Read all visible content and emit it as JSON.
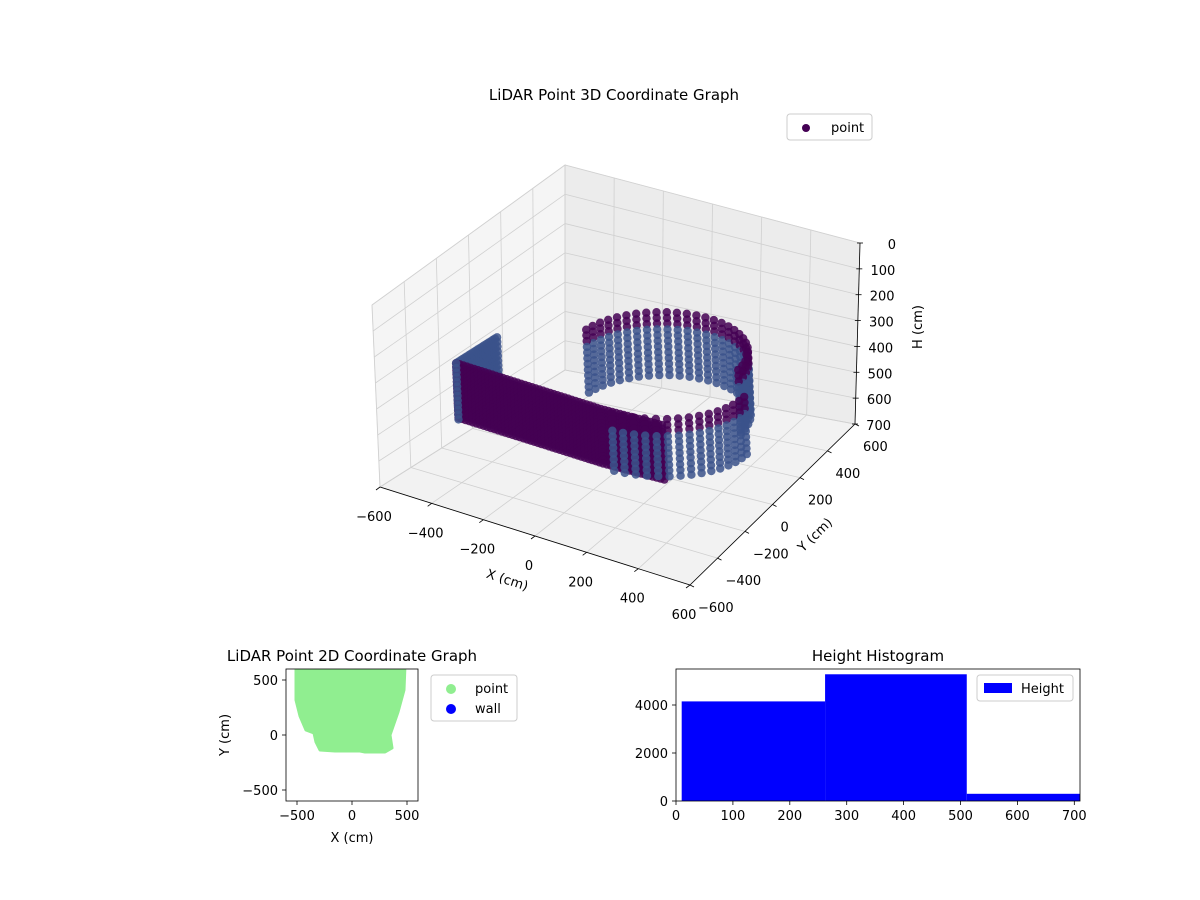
{
  "colors": {
    "point3d_dark": "#440154",
    "point3d_mid": "#3b528b",
    "point2d": "#90ee90",
    "wall": "#0000ff",
    "hist": "#0000ff",
    "pane": "#f2f2f2",
    "grid": "#d0d0d0"
  },
  "chart_data": [
    {
      "type": "scatter",
      "title": "LiDAR Point 3D Coordinate Graph",
      "xlabel": "X (cm)",
      "ylabel": "Y (cm)",
      "zlabel": "H (cm)",
      "xlim": [
        -600,
        600
      ],
      "ylim": [
        -600,
        600
      ],
      "zlim": [
        0,
        700
      ],
      "z_inverted": true,
      "xticks": [
        "−600",
        "−400",
        "−200",
        "0",
        "200",
        "400",
        "600"
      ],
      "yticks": [
        "−600",
        "−400",
        "−200",
        "0",
        "200",
        "400",
        "600"
      ],
      "zticks": [
        "0",
        "100",
        "200",
        "300",
        "400",
        "500",
        "600",
        "700"
      ],
      "grid": true,
      "legend": {
        "position": "top-right",
        "entries": [
          "point"
        ]
      },
      "series": [
        {
          "name": "point"
        }
      ]
    },
    {
      "type": "scatter",
      "title": "LiDAR Point 2D Coordinate Graph",
      "xlabel": "X (cm)",
      "ylabel": "Y (cm)",
      "xlim": [
        -600,
        600
      ],
      "ylim": [
        -600,
        600
      ],
      "xticks": [
        "−500",
        "0",
        "500"
      ],
      "yticks": [
        "−500",
        "0",
        "500"
      ],
      "legend": {
        "position": "outside-right",
        "entries": [
          "point",
          "wall"
        ]
      },
      "series": [
        {
          "name": "point"
        },
        {
          "name": "wall"
        }
      ]
    },
    {
      "type": "bar",
      "title": "Height Histogram",
      "xlabel": "",
      "ylabel": "",
      "xlim": [
        0,
        710
      ],
      "ylim": [
        0,
        5500
      ],
      "xticks": [
        "0",
        "100",
        "200",
        "300",
        "400",
        "500",
        "600",
        "700"
      ],
      "yticks": [
        "0",
        "2000",
        "4000"
      ],
      "legend": {
        "position": "top-right",
        "entries": [
          "Height"
        ]
      },
      "bins": [
        {
          "start": 10,
          "end": 262,
          "count": 4150
        },
        {
          "start": 262,
          "end": 511,
          "count": 5280
        },
        {
          "start": 511,
          "end": 710,
          "count": 300
        }
      ],
      "series": [
        {
          "name": "Height"
        }
      ]
    }
  ]
}
